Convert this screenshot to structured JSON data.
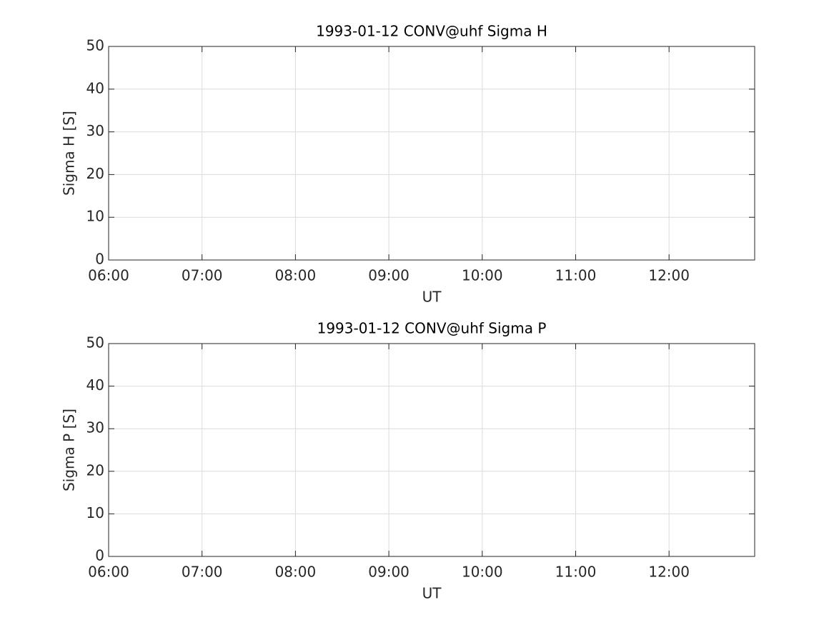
{
  "chart_data": [
    {
      "type": "line",
      "title": "1993-01-12  CONV@uhf Sigma H",
      "xlabel": "UT",
      "ylabel": "Sigma H [S]",
      "xlim": [
        "06:00",
        "12:55"
      ],
      "xticks": [
        "06:00",
        "07:00",
        "08:00",
        "09:00",
        "10:00",
        "11:00",
        "12:00"
      ],
      "ylim": [
        0,
        50
      ],
      "yticks": [
        0,
        10,
        20,
        30,
        40,
        50
      ],
      "grid": true
    },
    {
      "type": "line",
      "title": "1993-01-12  CONV@uhf Sigma P",
      "xlabel": "UT",
      "ylabel": "Sigma P [S]",
      "xlim": [
        "06:00",
        "12:55"
      ],
      "xticks": [
        "06:00",
        "07:00",
        "08:00",
        "09:00",
        "10:00",
        "11:00",
        "12:00"
      ],
      "ylim": [
        0,
        50
      ],
      "yticks": [
        0,
        10,
        20,
        30,
        40,
        50
      ],
      "grid": true
    }
  ]
}
